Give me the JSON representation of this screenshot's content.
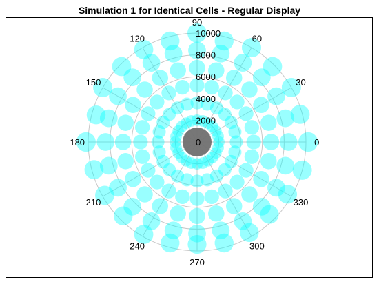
{
  "chart_data": {
    "type": "scatter",
    "projection": "polar",
    "title": "Simulation 1 for Identical Cells - Regular Display",
    "angle_ticks": [
      "0",
      "30",
      "60",
      "90",
      "120",
      "150",
      "180",
      "210",
      "240",
      "270",
      "300",
      "330"
    ],
    "radial_ticks": [
      "0",
      "2000",
      "4000",
      "6000",
      "8000",
      "10000"
    ],
    "radial_max": 10000,
    "grid": true,
    "colors": {
      "points": "#00ffff",
      "center": "#707070",
      "grid": "#c8c8c8"
    },
    "center_point": {
      "theta": 0,
      "r": 0
    },
    "series": [
      {
        "points": [
          {
            "theta": 0,
            "r": 2000
          },
          {
            "theta": 0,
            "r": 3600
          },
          {
            "theta": 0,
            "r": 5200
          },
          {
            "theta": 0,
            "r": 6800
          },
          {
            "theta": 0,
            "r": 8400
          },
          {
            "theta": 0,
            "r": 10200
          },
          {
            "theta": 15,
            "r": 2000
          },
          {
            "theta": 15,
            "r": 3600
          },
          {
            "theta": 15,
            "r": 5200
          },
          {
            "theta": 15,
            "r": 6800
          },
          {
            "theta": 15,
            "r": 8400
          },
          {
            "theta": 15,
            "r": 9800
          },
          {
            "theta": 30,
            "r": 2000
          },
          {
            "theta": 30,
            "r": 3600
          },
          {
            "theta": 30,
            "r": 5200
          },
          {
            "theta": 30,
            "r": 6800
          },
          {
            "theta": 30,
            "r": 8400
          },
          {
            "theta": 30,
            "r": 10000
          },
          {
            "theta": 45,
            "r": 2000
          },
          {
            "theta": 45,
            "r": 3600
          },
          {
            "theta": 45,
            "r": 5200
          },
          {
            "theta": 45,
            "r": 6800
          },
          {
            "theta": 45,
            "r": 8400
          },
          {
            "theta": 45,
            "r": 9800
          },
          {
            "theta": 60,
            "r": 2000
          },
          {
            "theta": 60,
            "r": 3600
          },
          {
            "theta": 60,
            "r": 5200
          },
          {
            "theta": 60,
            "r": 6800
          },
          {
            "theta": 60,
            "r": 8400
          },
          {
            "theta": 60,
            "r": 10000
          },
          {
            "theta": 75,
            "r": 2000
          },
          {
            "theta": 75,
            "r": 3600
          },
          {
            "theta": 75,
            "r": 5200
          },
          {
            "theta": 75,
            "r": 6800
          },
          {
            "theta": 75,
            "r": 8400
          },
          {
            "theta": 75,
            "r": 9600
          },
          {
            "theta": 90,
            "r": 2000
          },
          {
            "theta": 90,
            "r": 3600
          },
          {
            "theta": 90,
            "r": 5200
          },
          {
            "theta": 90,
            "r": 6800
          },
          {
            "theta": 90,
            "r": 8400
          },
          {
            "theta": 90,
            "r": 10000
          },
          {
            "theta": 105,
            "r": 2000
          },
          {
            "theta": 105,
            "r": 3600
          },
          {
            "theta": 105,
            "r": 5200
          },
          {
            "theta": 105,
            "r": 6800
          },
          {
            "theta": 105,
            "r": 8400
          },
          {
            "theta": 105,
            "r": 9600
          },
          {
            "theta": 120,
            "r": 2000
          },
          {
            "theta": 120,
            "r": 3600
          },
          {
            "theta": 120,
            "r": 5200
          },
          {
            "theta": 120,
            "r": 6800
          },
          {
            "theta": 120,
            "r": 8400
          },
          {
            "theta": 120,
            "r": 9800
          },
          {
            "theta": 135,
            "r": 2000
          },
          {
            "theta": 135,
            "r": 3600
          },
          {
            "theta": 135,
            "r": 5200
          },
          {
            "theta": 135,
            "r": 6800
          },
          {
            "theta": 135,
            "r": 8400
          },
          {
            "theta": 135,
            "r": 9800
          },
          {
            "theta": 150,
            "r": 2000
          },
          {
            "theta": 150,
            "r": 3600
          },
          {
            "theta": 150,
            "r": 5200
          },
          {
            "theta": 150,
            "r": 6800
          },
          {
            "theta": 150,
            "r": 8400
          },
          {
            "theta": 150,
            "r": 10000
          },
          {
            "theta": 165,
            "r": 2000
          },
          {
            "theta": 165,
            "r": 3600
          },
          {
            "theta": 165,
            "r": 5200
          },
          {
            "theta": 165,
            "r": 6800
          },
          {
            "theta": 165,
            "r": 8400
          },
          {
            "theta": 165,
            "r": 9600
          },
          {
            "theta": 180,
            "r": 2000
          },
          {
            "theta": 180,
            "r": 3600
          },
          {
            "theta": 180,
            "r": 5200
          },
          {
            "theta": 180,
            "r": 6800
          },
          {
            "theta": 180,
            "r": 8400
          },
          {
            "theta": 180,
            "r": 10200
          },
          {
            "theta": 195,
            "r": 2000
          },
          {
            "theta": 195,
            "r": 3600
          },
          {
            "theta": 195,
            "r": 5200
          },
          {
            "theta": 195,
            "r": 6800
          },
          {
            "theta": 195,
            "r": 8400
          },
          {
            "theta": 195,
            "r": 9800
          },
          {
            "theta": 210,
            "r": 2000
          },
          {
            "theta": 210,
            "r": 3600
          },
          {
            "theta": 210,
            "r": 5200
          },
          {
            "theta": 210,
            "r": 6800
          },
          {
            "theta": 210,
            "r": 8400
          },
          {
            "theta": 210,
            "r": 9800
          },
          {
            "theta": 225,
            "r": 2000
          },
          {
            "theta": 225,
            "r": 3600
          },
          {
            "theta": 225,
            "r": 5200
          },
          {
            "theta": 225,
            "r": 6800
          },
          {
            "theta": 225,
            "r": 8400
          },
          {
            "theta": 225,
            "r": 9600
          },
          {
            "theta": 240,
            "r": 2000
          },
          {
            "theta": 240,
            "r": 3600
          },
          {
            "theta": 240,
            "r": 5200
          },
          {
            "theta": 240,
            "r": 6800
          },
          {
            "theta": 240,
            "r": 8400
          },
          {
            "theta": 240,
            "r": 9800
          },
          {
            "theta": 255,
            "r": 2000
          },
          {
            "theta": 255,
            "r": 3600
          },
          {
            "theta": 255,
            "r": 5200
          },
          {
            "theta": 255,
            "r": 6800
          },
          {
            "theta": 255,
            "r": 8400
          },
          {
            "theta": 255,
            "r": 9600
          },
          {
            "theta": 270,
            "r": 2000
          },
          {
            "theta": 270,
            "r": 3600
          },
          {
            "theta": 270,
            "r": 5200
          },
          {
            "theta": 270,
            "r": 6800
          },
          {
            "theta": 270,
            "r": 8400
          },
          {
            "theta": 270,
            "r": 9400
          },
          {
            "theta": 285,
            "r": 2000
          },
          {
            "theta": 285,
            "r": 3600
          },
          {
            "theta": 285,
            "r": 5200
          },
          {
            "theta": 285,
            "r": 6800
          },
          {
            "theta": 285,
            "r": 8400
          },
          {
            "theta": 285,
            "r": 9600
          },
          {
            "theta": 300,
            "r": 2000
          },
          {
            "theta": 300,
            "r": 3600
          },
          {
            "theta": 300,
            "r": 5200
          },
          {
            "theta": 300,
            "r": 6800
          },
          {
            "theta": 300,
            "r": 8400
          },
          {
            "theta": 300,
            "r": 9600
          },
          {
            "theta": 315,
            "r": 2000
          },
          {
            "theta": 315,
            "r": 3600
          },
          {
            "theta": 315,
            "r": 5200
          },
          {
            "theta": 315,
            "r": 6800
          },
          {
            "theta": 315,
            "r": 8400
          },
          {
            "theta": 315,
            "r": 9400
          },
          {
            "theta": 330,
            "r": 2000
          },
          {
            "theta": 330,
            "r": 3600
          },
          {
            "theta": 330,
            "r": 5200
          },
          {
            "theta": 330,
            "r": 6800
          },
          {
            "theta": 330,
            "r": 8400
          },
          {
            "theta": 330,
            "r": 9600
          },
          {
            "theta": 345,
            "r": 2000
          },
          {
            "theta": 345,
            "r": 3600
          },
          {
            "theta": 345,
            "r": 5200
          },
          {
            "theta": 345,
            "r": 6800
          },
          {
            "theta": 345,
            "r": 8400
          },
          {
            "theta": 345,
            "r": 10000
          }
        ]
      }
    ]
  }
}
